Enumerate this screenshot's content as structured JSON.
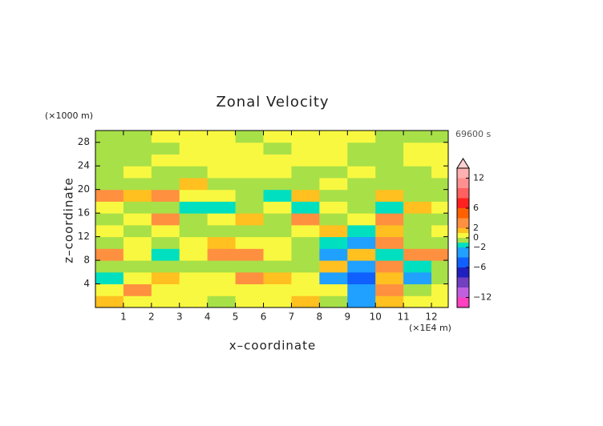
{
  "chart_data": {
    "type": "contour",
    "title": "Zonal Velocity",
    "time_label": "69600 s",
    "xlabel": "x–coordinate",
    "ylabel": "z–coordinate",
    "x_unit": "(×1E4 m)",
    "y_unit": "(×1000 m)",
    "xlim": [
      0,
      12.6
    ],
    "ylim": [
      0,
      30
    ],
    "xticks": [
      1,
      2,
      3,
      4,
      5,
      6,
      7,
      8,
      9,
      10,
      11,
      12
    ],
    "yticks": [
      4,
      8,
      12,
      16,
      20,
      24,
      28
    ],
    "x": [
      0.5,
      1.5,
      2.5,
      3.5,
      4.5,
      5.5,
      6.5,
      7.5,
      8.5,
      9.5,
      10.5,
      11.5,
      12.5
    ],
    "z": [
      1,
      3,
      5,
      7,
      9,
      11,
      13,
      15,
      17,
      19,
      21,
      23,
      25,
      27,
      29
    ],
    "values": [
      [
        1.5,
        0.5,
        0.5,
        0.5,
        -0.5,
        0.5,
        0.5,
        1.5,
        -0.5,
        -3,
        1.5,
        0.5,
        0.5
      ],
      [
        0.5,
        2.5,
        0.5,
        0.5,
        0.5,
        0.5,
        0.5,
        0.5,
        0.5,
        -2.5,
        2.5,
        -0.5,
        0.5
      ],
      [
        -1.5,
        0.5,
        1.5,
        0.5,
        0.5,
        2.5,
        1.5,
        0.5,
        -3,
        -5,
        1.5,
        -3,
        -0.5
      ],
      [
        -0.5,
        -0.5,
        -0.5,
        -0.5,
        -0.5,
        -0.5,
        -0.5,
        -0.5,
        1.5,
        -3,
        3,
        -1.5,
        -0.5
      ],
      [
        2.5,
        0.5,
        -1.5,
        0.5,
        2.5,
        2.5,
        0.5,
        -0.5,
        -3,
        1.5,
        -1.5,
        2.5,
        2.5
      ],
      [
        -0.5,
        0.5,
        -0.5,
        0.5,
        1.5,
        0.5,
        0.5,
        -0.5,
        -1.5,
        -2.5,
        2.5,
        -0.5,
        -0.5
      ],
      [
        0.5,
        -0.5,
        0.5,
        -0.5,
        -0.5,
        -0.5,
        -0.5,
        0.5,
        1.5,
        -1.5,
        1.5,
        -0.5,
        0.5
      ],
      [
        -0.5,
        0.5,
        2.5,
        -0.5,
        0.5,
        1.5,
        -0.5,
        2.5,
        -0.5,
        0.5,
        2.5,
        -0.5,
        -0.5
      ],
      [
        0.5,
        -0.5,
        -0.5,
        -1.5,
        -1.5,
        -0.5,
        0.5,
        -1.5,
        0.5,
        -0.5,
        -1.5,
        1.5,
        0.5
      ],
      [
        2.5,
        1.5,
        2.5,
        0.5,
        0.5,
        -0.5,
        -1.5,
        1.5,
        -0.5,
        -0.5,
        1.5,
        -0.5,
        -0.5
      ],
      [
        -0.5,
        -0.5,
        -0.5,
        1.5,
        -0.5,
        -0.5,
        -0.5,
        -0.5,
        0.5,
        -0.5,
        -0.5,
        -0.5,
        -0.5
      ],
      [
        -0.5,
        0.5,
        -0.5,
        -0.5,
        0.5,
        0.5,
        0.5,
        -0.5,
        -0.5,
        0.5,
        -0.5,
        -0.5,
        0.5
      ],
      [
        -0.5,
        -0.5,
        0.5,
        0.5,
        0.5,
        0.5,
        0.5,
        0.5,
        0.5,
        -0.5,
        -0.5,
        0.5,
        0.5
      ],
      [
        -0.5,
        -0.5,
        -0.5,
        0.5,
        0.5,
        0.5,
        -0.5,
        0.5,
        0.5,
        -0.5,
        -0.5,
        0.5,
        0.5
      ],
      [
        -0.5,
        -0.5,
        0.5,
        0.5,
        0.5,
        -0.5,
        0.5,
        0.5,
        0.5,
        0.5,
        -0.5,
        -0.5,
        -0.5
      ]
    ],
    "colorbar": {
      "levels": [
        -14,
        -12,
        -10,
        -8,
        -6,
        -4,
        -2,
        -1,
        0,
        1,
        2,
        4,
        6,
        8,
        10,
        12,
        14
      ],
      "colors": [
        "#ff40c0",
        "#c060e0",
        "#7040c0",
        "#2020c0",
        "#1060ff",
        "#20a0ff",
        "#00e0c0",
        "#a8e048",
        "#f8f840",
        "#ffc020",
        "#ff9040",
        "#ff6000",
        "#ff2020",
        "#ff6060",
        "#ff9090",
        "#ffb0b0"
      ],
      "over_color": "#ffd0d0",
      "ticks": [
        {
          "value": -12,
          "label": "−12"
        },
        {
          "value": -6,
          "label": "−6"
        },
        {
          "value": -2,
          "label": "−2"
        },
        0,
        2,
        6,
        12
      ]
    }
  }
}
